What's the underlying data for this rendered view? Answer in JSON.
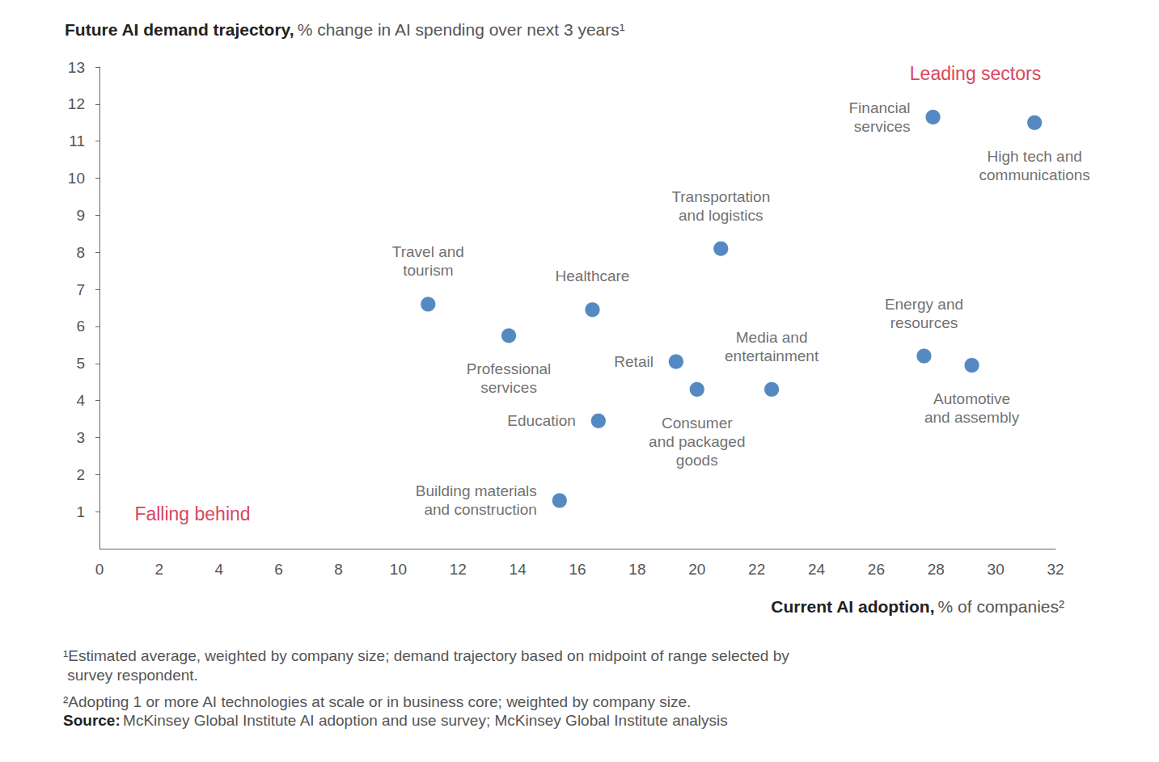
{
  "chart_data": {
    "type": "scatter",
    "ylabel": {
      "bold": "Future AI demand trajectory,",
      "text": "% change in AI spending over next 3 years¹"
    },
    "xlabel": {
      "bold": "Current AI adoption,",
      "text": "% of companies²"
    },
    "labels": [
      "Travel and\ntourism",
      "Professional\nservices",
      "Healthcare",
      "Education",
      "Building materials\nand construction",
      "Retail",
      "Consumer\nand packaged\ngoods",
      "Transportation\nand logistics",
      "Media and\nentertainment",
      "Energy and\nresources",
      "Automotive\nand assembly",
      "Financial\nservices",
      "High tech and\ncommunications"
    ],
    "x": [
      11.0,
      13.7,
      16.5,
      16.7,
      15.4,
      19.3,
      20.0,
      20.8,
      22.5,
      27.6,
      29.2,
      27.9,
      31.3
    ],
    "values": [
      6.6,
      5.75,
      6.45,
      3.45,
      1.3,
      5.05,
      4.3,
      8.1,
      4.3,
      5.2,
      4.95,
      11.65,
      11.5
    ],
    "color": "#2b6cb3",
    "xlim": [
      0,
      32
    ],
    "xticks": [
      0,
      2,
      4,
      6,
      8,
      10,
      12,
      14,
      16,
      18,
      20,
      22,
      24,
      26,
      28,
      30,
      32
    ],
    "ylim": [
      0,
      13
    ],
    "yticks": [
      1,
      2,
      3,
      4,
      5,
      6,
      7,
      8,
      9,
      10,
      11,
      12,
      13
    ],
    "grid": false,
    "annotations": [
      {
        "text": "Leading sectors",
        "color": "#d8475c"
      },
      {
        "text": "Falling behind",
        "color": "#d8475c"
      }
    ],
    "footnotes": [
      "¹Estimated average, weighted by company size; demand trajectory based on midpoint of range selected by\n survey respondent.",
      "²Adopting 1 or more AI technologies at scale or in business core; weighted by company size."
    ],
    "source": {
      "bold": "Source:",
      "text": "McKinsey Global Institute AI adoption and use survey; McKinsey Global Institute analysis"
    }
  }
}
